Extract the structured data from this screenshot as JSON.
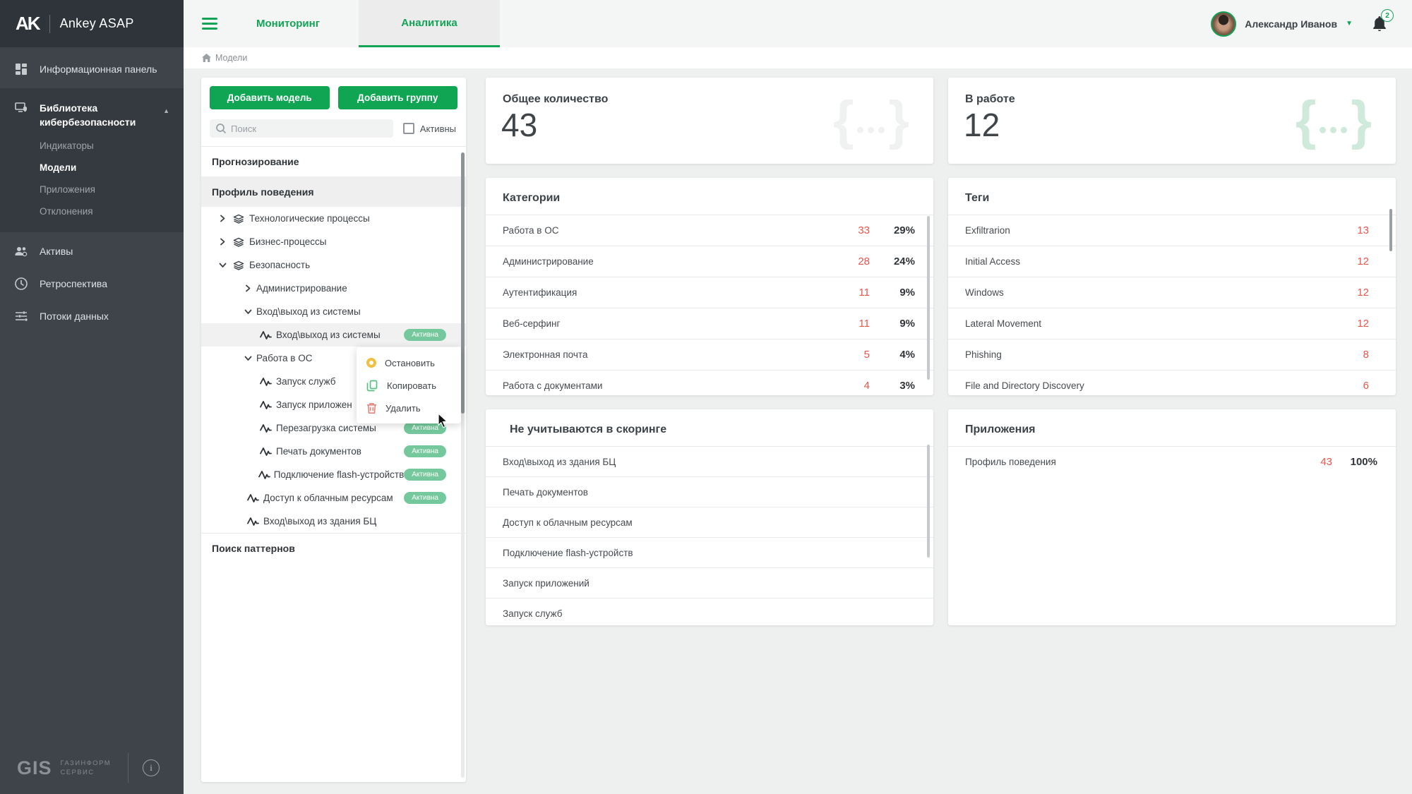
{
  "app": {
    "logo_glyph": "AK",
    "brand": "Ankey ASAP"
  },
  "topbar": {
    "tabs": [
      {
        "label": "Мониторинг",
        "active": false
      },
      {
        "label": "Аналитика",
        "active": true
      }
    ],
    "user_name": "Александр Иванов",
    "notifications_count": "2"
  },
  "breadcrumb": {
    "label": "Модели"
  },
  "sidebar": {
    "dashboard": "Информационная панель",
    "library": "Библиотека кибербезопасности",
    "library_children": [
      "Индикаторы",
      "Модели",
      "Приложения",
      "Отклонения"
    ],
    "library_active_child": "Модели",
    "assets": "Активы",
    "retrospective": "Ретроспектива",
    "data_flows": "Потоки данных",
    "footer": {
      "logo": "GIS",
      "company_line1": "ГАЗИНФОРМ",
      "company_line2": "СЕРВИС"
    }
  },
  "panel": {
    "add_model_label": "Добавить модель",
    "add_group_label": "Добавить группу",
    "search_placeholder": "Поиск",
    "filter_label": "Активны",
    "group_forecast": "Прогнозирование",
    "group_behavior": "Профиль поведения",
    "group_patterns": "Поиск паттернов",
    "tree_rows": [
      {
        "label": "Технологические процессы",
        "level": 1,
        "chevron": "right",
        "icon": "layers"
      },
      {
        "label": "Бизнес-процессы",
        "level": 1,
        "chevron": "right",
        "icon": "layers"
      },
      {
        "label": "Безопасность",
        "level": 1,
        "chevron": "down",
        "icon": "layers"
      },
      {
        "label": "Администрирование",
        "level": 2,
        "chevron": "right"
      },
      {
        "label": "Вход\\выход из системы",
        "level": 2,
        "chevron": "down"
      },
      {
        "label": "Вход\\выход из системы",
        "level": 3,
        "icon": "pulse",
        "badge": "Активна",
        "selected": true
      },
      {
        "label": "Работа в ОС",
        "level": 2,
        "chevron": "down"
      },
      {
        "label": "Запуск служб",
        "level": 3,
        "icon": "pulse"
      },
      {
        "label": "Запуск приложен",
        "level": 3,
        "icon": "pulse"
      },
      {
        "label": "Перезагрузка системы",
        "level": 3,
        "icon": "pulse",
        "badge": "Активна"
      },
      {
        "label": "Печать документов",
        "level": 3,
        "icon": "pulse",
        "badge": "Активна"
      },
      {
        "label": "Подключение flash-устройств",
        "level": 3,
        "icon": "pulse",
        "badge": "Активна"
      },
      {
        "label": "Доступ к облачным ресурсам",
        "level": 2,
        "icon": "pulse",
        "badge": "Активна"
      },
      {
        "label": "Вход\\выход из здания БЦ",
        "level": 2,
        "icon": "pulse"
      }
    ]
  },
  "context_menu": {
    "items": [
      {
        "label": "Остановить",
        "icon": "stop"
      },
      {
        "label": "Копировать",
        "icon": "copy"
      },
      {
        "label": "Удалить",
        "icon": "delete"
      }
    ]
  },
  "cards": {
    "total": {
      "title": "Общее количество",
      "value": "43"
    },
    "in_work": {
      "title": "В работе",
      "value": "12"
    },
    "categories": {
      "title": "Категории",
      "rows": [
        {
          "label": "Работа в ОС",
          "count": "33",
          "pct": "29%"
        },
        {
          "label": "Администрирование",
          "count": "28",
          "pct": "24%"
        },
        {
          "label": "Аутентификация",
          "count": "11",
          "pct": "9%"
        },
        {
          "label": "Веб-серфинг",
          "count": "11",
          "pct": "9%"
        },
        {
          "label": "Электронная почта",
          "count": "5",
          "pct": "4%"
        },
        {
          "label": "Работа с документами",
          "count": "4",
          "pct": "3%"
        }
      ]
    },
    "tags": {
      "title": "Теги",
      "rows": [
        {
          "label": "Exfiltrarion",
          "count": "13"
        },
        {
          "label": "Initial Access",
          "count": "12"
        },
        {
          "label": "Windows",
          "count": "12"
        },
        {
          "label": "Lateral Movement",
          "count": "12"
        },
        {
          "label": "Phishing",
          "count": "8"
        },
        {
          "label": "File and Directory Discovery",
          "count": "6"
        }
      ]
    },
    "excluded": {
      "title": "Не учитываются в скоринге",
      "rows": [
        "Вход\\выход из здания БЦ",
        "Печать документов",
        "Доступ к облачным ресурсам",
        "Подключение flash-устройств",
        "Запуск приложений",
        "Запуск служб"
      ]
    },
    "apps": {
      "title": "Приложения",
      "rows": [
        {
          "label": "Профиль поведения",
          "count": "43",
          "pct": "100%"
        }
      ]
    }
  },
  "colors": {
    "accent_green": "#12a356",
    "button_green": "#0fa553",
    "badge_green": "#74c89c",
    "count_red": "#e8564e",
    "brace_gray": "#f0f1f1",
    "brace_green": "#cfe9db"
  }
}
